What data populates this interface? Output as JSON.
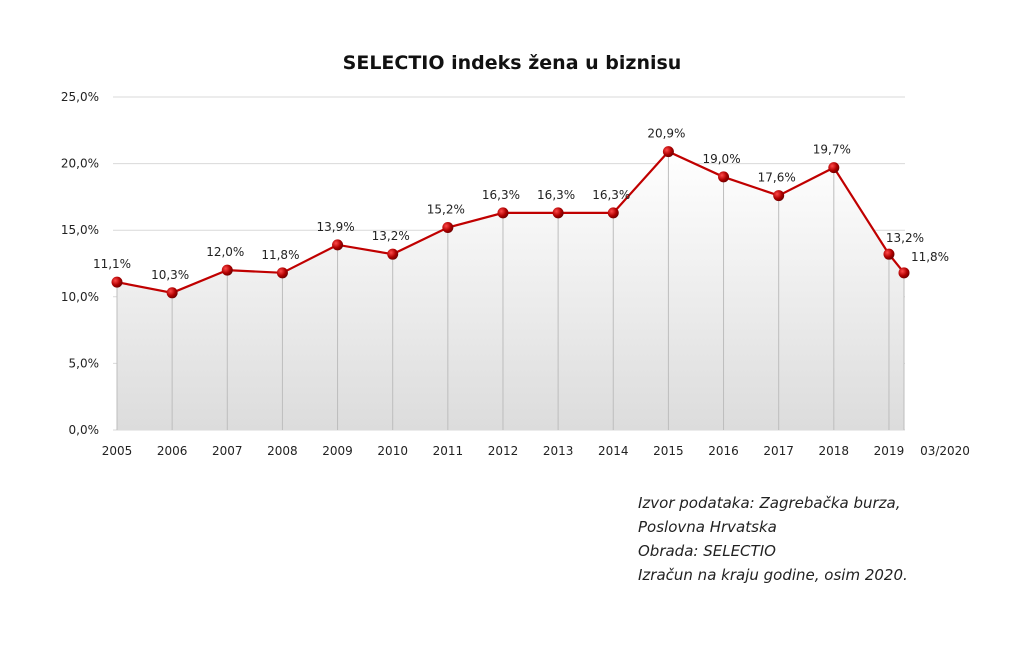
{
  "chart_data": {
    "type": "line",
    "title": "SELECTIO indeks žena u biznisu",
    "xlabel": "",
    "ylabel": "",
    "categories": [
      "2005",
      "2006",
      "2007",
      "2008",
      "2009",
      "2010",
      "2011",
      "2012",
      "2013",
      "2014",
      "2015",
      "2016",
      "2017",
      "2018",
      "2019",
      "03/2020"
    ],
    "values": [
      11.1,
      10.3,
      12.0,
      11.8,
      13.9,
      13.2,
      15.2,
      16.3,
      16.3,
      16.3,
      20.9,
      19.0,
      17.6,
      19.7,
      13.2,
      11.8
    ],
    "data_labels": [
      "11,1%",
      "10,3%",
      "12,0%",
      "11,8%",
      "13,9%",
      "13,2%",
      "15,2%",
      "16,3%",
      "16,3%",
      "16,3%",
      "20,9%",
      "19,0%",
      "17,6%",
      "19,7%",
      "13,2%",
      "11,8%"
    ],
    "ylim": [
      0,
      25
    ],
    "yticks": [
      "0,0%",
      "5,0%",
      "10,0%",
      "15,0%",
      "20,0%",
      "25,0%"
    ],
    "grid": true,
    "legend": "none",
    "line_color": "#c00000",
    "marker_color": "#a00000"
  },
  "notes": [
    "Izvor podataka: Zagrebačka burza,",
    "Poslovna Hrvatska",
    "Obrada: SELECTIO",
    "Izračun na kraju godine, osim 2020."
  ]
}
